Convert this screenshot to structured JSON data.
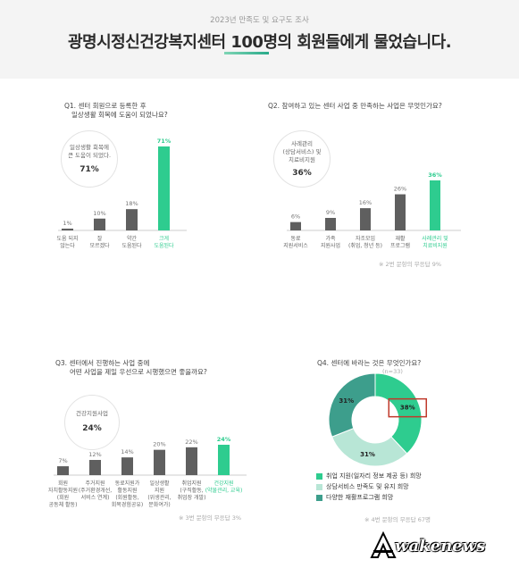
{
  "header": {
    "subtitle": "2023년 만족도 및 요구도 조사",
    "title": "광명시정신건강복지센터 100명의 회원들에게 물었습니다."
  },
  "q1": {
    "title_line1": "Q1. 센터 회원으로 등록한 후",
    "title_line2": "일상생활 회복에 도움이 되었나요?",
    "bubble_line1": "일상생활 회복에",
    "bubble_line2": "큰 도움이 되었다.",
    "bubble_pct": "71%"
  },
  "q2": {
    "title": "Q2. 참여하고 있는 센터 사업 중 만족하는 사업은 무엇인가요?",
    "bubble_line1": "사례관리",
    "bubble_line2": "(상담서비스) 및",
    "bubble_line3": "치료비지원",
    "bubble_pct": "36%",
    "note": "※ 2번 문항의 무응답 9%"
  },
  "q3": {
    "title_line1": "Q3. 센터에서 진행하는 사업 중에",
    "title_line2": "어떤 사업을 제일 우선으로 시행했으면 좋을까요?",
    "bubble_line1": "건강지원사업",
    "bubble_pct": "24%",
    "note": "※ 3번 문항의 무응답 3%"
  },
  "q4": {
    "title": "Q4. 센터에 바라는 것은 무엇인가요?",
    "n_label": "(n=33)",
    "note": "※ 4번 문항의 무응답 67명"
  },
  "colors": {
    "accent": "#2ecc8f",
    "bar": "#5f5f5f",
    "teal": "#3d9e8c",
    "mint": "#b8e6d6",
    "highlight": "#c0392b"
  },
  "chart_data": [
    {
      "type": "bar",
      "id": "q1",
      "categories": [
        "도움 되지\n않는다",
        "잘\n모르겠다",
        "약간\n도움된다",
        "크게\n도움된다"
      ],
      "values": [
        1,
        10,
        18,
        71
      ],
      "labels": [
        "1%",
        "10%",
        "18%",
        "71%"
      ],
      "highlight_index": 3
    },
    {
      "type": "bar",
      "id": "q2",
      "categories": [
        "동료\n지원서비스",
        "가족\n지원사업",
        "자조모임\n(취업, 청년 등)",
        "재활\n프로그램",
        "사례관리 및\n치료비지원"
      ],
      "values": [
        6,
        9,
        16,
        26,
        36
      ],
      "labels": [
        "6%",
        "9%",
        "16%",
        "26%",
        "36%"
      ],
      "highlight_index": 4
    },
    {
      "type": "bar",
      "id": "q3",
      "categories": [
        "회원\n자치활동지원\n(회원\n공동체 활동)",
        "주거지원\n(주거환경개선,\n서비스 연계)",
        "동료지원가\n활동지원\n(회원활동,\n회복경험공유)",
        "일상생활\n지원\n(위생관리,\n문화여가)",
        "취업지원\n(구직활동,\n취업장 개발)",
        "건강지원\n(약물관리, 교육)"
      ],
      "values": [
        7,
        12,
        14,
        20,
        22,
        24
      ],
      "labels": [
        "7%",
        "12%",
        "14%",
        "20%",
        "22%",
        "24%"
      ],
      "highlight_index": 5
    },
    {
      "type": "pie",
      "id": "q4",
      "categories": [
        "취업 지원(일자리 정보 제공 등) 희망",
        "상담서비스 만족도 및 유지 희망",
        "다양한 재활프로그램 희망"
      ],
      "values": [
        38,
        31,
        31
      ],
      "labels": [
        "38%",
        "31%",
        "31%"
      ],
      "colors": [
        "#2ecc8f",
        "#b8e6d6",
        "#3d9e8c"
      ]
    }
  ]
}
